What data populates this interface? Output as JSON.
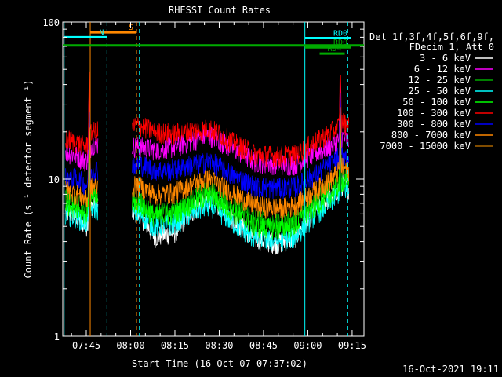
{
  "chart_data": {
    "type": "line",
    "title": "RHESSI Count Rates",
    "xlabel": "Start Time (16-Oct-07 07:37:02)",
    "ylabel": "Count Rate (s⁻¹ detector segment⁻¹)",
    "y_scale": "log",
    "ylim": [
      1,
      100
    ],
    "y_ticks": [
      "1",
      "10",
      "100"
    ],
    "x_ticks": [
      "07:45",
      "08:00",
      "08:15",
      "08:30",
      "08:45",
      "09:00",
      "09:15"
    ],
    "xlim": [
      "07:37:02",
      "09:19:00"
    ],
    "data_gap": [
      "07:49:00",
      "08:00:30"
    ],
    "legend": {
      "placement": "right",
      "header": [
        "Det 1f,3f,4f,5f,6f,9f,",
        "FDecim 1, Att 0"
      ]
    },
    "series": [
      {
        "name": "3 - 6 keV",
        "color": "#ffffff",
        "x": [
          "07:38",
          "07:42",
          "07:45",
          "07:47",
          "08:03",
          "08:08",
          "08:15",
          "08:22",
          "08:27",
          "08:35",
          "08:42",
          "08:50",
          "08:56",
          "09:02",
          "09:08",
          "09:12",
          "09:14"
        ],
        "y": [
          6.2,
          5.8,
          5.0,
          7.0,
          6.0,
          4.3,
          4.6,
          6.5,
          7.6,
          5.5,
          4.2,
          3.9,
          4.3,
          6.2,
          7.8,
          9.3,
          8.6
        ]
      },
      {
        "name": "6 - 12 keV",
        "color": "#ff00ff",
        "x": [
          "07:38",
          "07:42",
          "07:45",
          "07:47",
          "08:03",
          "08:08",
          "08:15",
          "08:22",
          "08:27",
          "08:35",
          "08:42",
          "08:50",
          "08:56",
          "09:02",
          "09:08",
          "09:12",
          "09:14"
        ],
        "y": [
          15.0,
          14.0,
          13.0,
          17.0,
          16.0,
          15.5,
          16.0,
          18.0,
          19.0,
          15.5,
          13.0,
          12.5,
          12.5,
          14.5,
          16.5,
          18.5,
          17.5
        ]
      },
      {
        "name": "12 - 25 keV",
        "color": "#00aa00",
        "x": [
          "07:38",
          "07:42",
          "07:45",
          "07:47",
          "08:03",
          "08:08",
          "08:15",
          "08:22",
          "08:27",
          "08:35",
          "08:42",
          "08:50",
          "08:56",
          "09:02",
          "09:08",
          "09:12",
          "09:14"
        ],
        "y": [
          7.5,
          7.0,
          6.3,
          8.0,
          7.2,
          6.0,
          6.2,
          7.8,
          8.5,
          6.8,
          5.6,
          5.2,
          5.5,
          7.2,
          8.8,
          10.5,
          9.8
        ]
      },
      {
        "name": "25 - 50 keV",
        "color": "#00ffff",
        "x": [
          "07:38",
          "07:42",
          "07:45",
          "07:47",
          "08:03",
          "08:08",
          "08:15",
          "08:22",
          "08:27",
          "08:35",
          "08:42",
          "08:50",
          "08:56",
          "09:02",
          "09:08",
          "09:12",
          "09:14"
        ],
        "y": [
          6.0,
          5.7,
          5.2,
          6.5,
          6.0,
          5.0,
          5.2,
          6.3,
          6.8,
          5.2,
          4.2,
          4.0,
          4.3,
          5.8,
          7.2,
          8.8,
          8.2
        ]
      },
      {
        "name": "50 - 100 keV",
        "color": "#00ff00",
        "x": [
          "07:38",
          "07:42",
          "07:45",
          "07:47",
          "08:03",
          "08:08",
          "08:15",
          "08:22",
          "08:27",
          "08:35",
          "08:42",
          "08:50",
          "08:56",
          "09:02",
          "09:08",
          "09:12",
          "09:14"
        ],
        "y": [
          7.0,
          6.6,
          6.0,
          7.5,
          7.0,
          5.8,
          6.0,
          7.2,
          7.8,
          6.1,
          5.0,
          4.8,
          5.1,
          6.6,
          8.0,
          9.8,
          9.2
        ]
      },
      {
        "name": "100 - 300 keV",
        "color": "#ff0000",
        "x": [
          "07:38",
          "07:42",
          "07:45",
          "07:47",
          "08:03",
          "08:08",
          "08:15",
          "08:22",
          "08:27",
          "08:35",
          "08:42",
          "08:50",
          "08:56",
          "09:02",
          "09:08",
          "09:12",
          "09:14"
        ],
        "y": [
          18.0,
          17.0,
          16.0,
          20.0,
          22.0,
          20.0,
          19.5,
          20.5,
          21.0,
          17.0,
          14.5,
          14.0,
          14.5,
          17.0,
          20.0,
          23.0,
          22.0
        ]
      },
      {
        "name": "300 - 800 keV",
        "color": "#0000ff",
        "x": [
          "07:38",
          "07:42",
          "07:45",
          "07:47",
          "08:03",
          "08:08",
          "08:15",
          "08:22",
          "08:27",
          "08:35",
          "08:42",
          "08:50",
          "08:56",
          "09:02",
          "09:08",
          "09:12",
          "09:14"
        ],
        "y": [
          10.5,
          10.0,
          9.2,
          11.5,
          12.5,
          11.5,
          11.5,
          12.5,
          13.0,
          10.5,
          9.0,
          8.8,
          9.0,
          10.5,
          12.5,
          14.5,
          13.5
        ]
      },
      {
        "name": "800 - 7000 keV",
        "color": "#ff8800",
        "x": [
          "07:38",
          "07:42",
          "07:45",
          "07:47",
          "08:03",
          "08:08",
          "08:15",
          "08:22",
          "08:27",
          "08:35",
          "08:42",
          "08:50",
          "08:56",
          "09:02",
          "09:08",
          "09:12",
          "09:14"
        ],
        "y": [
          8.5,
          8.0,
          7.3,
          9.0,
          9.0,
          8.0,
          8.2,
          9.5,
          10.0,
          8.0,
          6.8,
          6.5,
          6.8,
          8.3,
          10.0,
          12.0,
          11.2
        ]
      },
      {
        "name": "7000 - 15000 keV",
        "color": "#aa6600",
        "x": [],
        "y": []
      }
    ],
    "annotations": [
      {
        "type": "vline",
        "x": "07:37:30",
        "color": "#00ffff",
        "style": "solid"
      },
      {
        "type": "vline",
        "x": "07:46:20",
        "color": "#ff8800",
        "style": "solid"
      },
      {
        "type": "vline",
        "x": "07:52:00",
        "color": "#00ffff",
        "style": "dashed"
      },
      {
        "type": "vline",
        "x": "08:02:00",
        "color": "#ff8800",
        "style": "dashed"
      },
      {
        "type": "vline",
        "x": "08:03:00",
        "color": "#00ffff",
        "style": "dashed"
      },
      {
        "type": "vline",
        "x": "08:59:00",
        "color": "#00ffff",
        "style": "solid"
      },
      {
        "type": "vline",
        "x": "09:13:30",
        "color": "#00ffff",
        "style": "dashed"
      },
      {
        "type": "hbar",
        "label": "S",
        "color": "#ff8800",
        "x0": "07:46:20",
        "x1": "08:02:00",
        "y": 86
      },
      {
        "type": "hbar",
        "label": "N",
        "color": "#00ffff",
        "x0": "07:37:30",
        "x1": "07:52:00",
        "y": 80
      },
      {
        "type": "hbar",
        "label": "",
        "color": "#00aa00",
        "x0": "07:37:02",
        "x1": "09:19:00",
        "y": 71
      },
      {
        "type": "hbar",
        "label": "RD0",
        "color": "#00ffff",
        "x0": "08:59:00",
        "x1": "09:14:30",
        "y": 79
      },
      {
        "type": "hbar",
        "label": "RD0",
        "color": "#00aa00",
        "x0": "08:59:00",
        "x1": "09:14:30",
        "y": 69
      },
      {
        "type": "hbar",
        "label": "RD4",
        "color": "#00aa00",
        "x0": "09:04:00",
        "x1": "09:12:30",
        "y": 63
      }
    ],
    "grid": false
  },
  "footer": {
    "timestamp": "16-Oct-2021 19:11"
  }
}
